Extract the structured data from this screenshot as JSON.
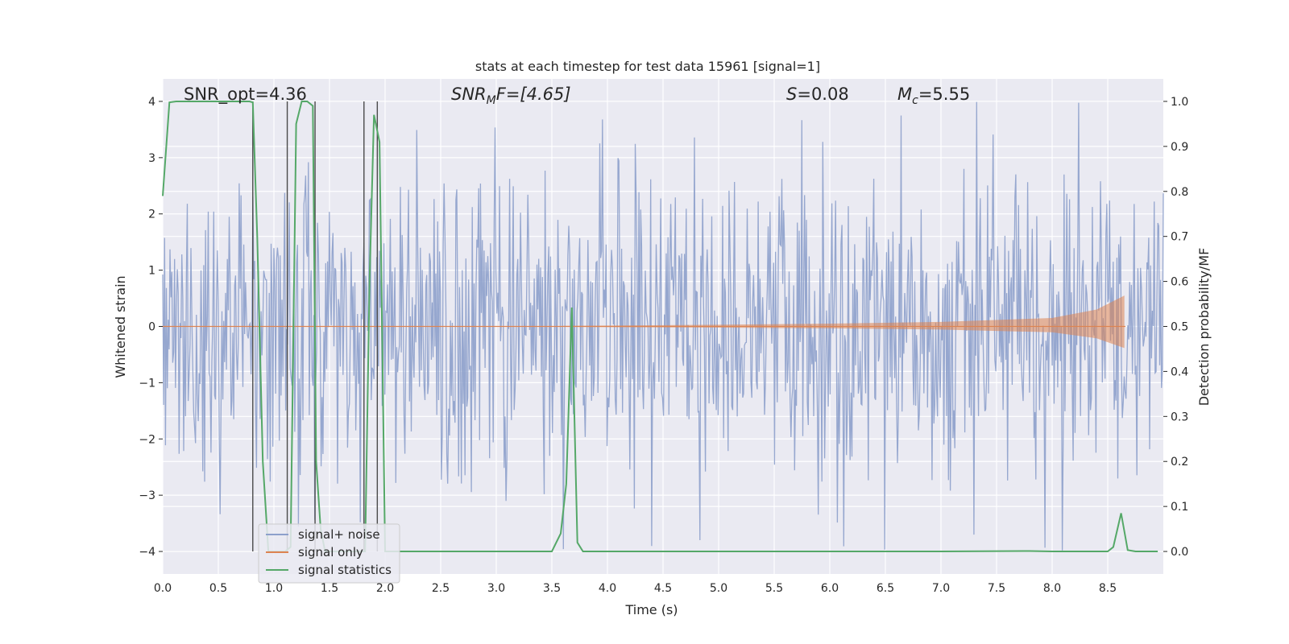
{
  "chart_data": {
    "type": "line",
    "title": "stats at each timestep for test data 15961 [signal=1]",
    "xlabel": "Time (s)",
    "ylabel": "Whitened strain",
    "y2label": "Detection probability/MF",
    "xlim": [
      0.0,
      9.0
    ],
    "ylim": [
      -4.4,
      4.4
    ],
    "y2lim": [
      -0.05,
      1.05
    ],
    "xticks": [
      "0.0",
      "0.5",
      "1.0",
      "1.5",
      "2.0",
      "2.5",
      "3.0",
      "3.5",
      "4.0",
      "4.5",
      "5.0",
      "5.5",
      "6.0",
      "6.5",
      "7.0",
      "7.5",
      "8.0",
      "8.5"
    ],
    "yticks": [
      "4",
      "3",
      "2",
      "1",
      "0",
      "−1",
      "−2",
      "−3",
      "−4"
    ],
    "y2ticks": [
      "1.0",
      "0.9",
      "0.8",
      "0.7",
      "0.6",
      "0.5",
      "0.4",
      "0.3",
      "0.2",
      "0.1",
      "0.0"
    ],
    "grid": true,
    "legend_position": "lower-left",
    "annotations": {
      "snr_opt": "SNR_opt=4.36",
      "snr_mf_main": "SNR",
      "snr_mf_sub": "M",
      "snr_mf_rest": "F=[4.65]",
      "s_main": "S",
      "s_rest": "=0.08",
      "mc_main": "M",
      "mc_sub": "c",
      "mc_rest": "=5.55"
    },
    "series": [
      {
        "name": "signal+ noise",
        "color": "#8da0cb",
        "note_band": "noise band mostly within ±1.6, frequent spikes to ±3.5, a few to about ±4.0",
        "typical_amplitude": 1.6,
        "max_spike": 4.0
      },
      {
        "name": "signal only",
        "color": "#dd8452",
        "envelope": [
          [
            3.6,
            0.01
          ],
          [
            5.0,
            0.03
          ],
          [
            6.0,
            0.05
          ],
          [
            7.0,
            0.08
          ],
          [
            8.0,
            0.15
          ],
          [
            8.4,
            0.3
          ],
          [
            8.6,
            0.5
          ],
          [
            8.65,
            0.55
          ]
        ],
        "end_time": 8.66
      },
      {
        "name": "signal statistics",
        "color": "#55a868",
        "x": [
          0.0,
          0.06,
          0.12,
          0.2,
          0.4,
          0.6,
          0.78,
          0.81,
          0.85,
          0.9,
          0.95,
          1.0,
          1.1,
          1.15,
          1.2,
          1.25,
          1.3,
          1.35,
          1.38,
          1.42,
          1.46,
          1.5,
          1.6,
          1.7,
          1.78,
          1.82,
          1.86,
          1.9,
          1.95,
          2.0,
          2.1,
          2.5,
          3.0,
          3.5,
          3.58,
          3.63,
          3.68,
          3.73,
          3.78,
          4.0,
          5.0,
          6.0,
          7.0,
          7.8,
          8.0,
          8.5,
          8.55,
          8.62,
          8.68,
          8.75,
          8.95
        ],
        "values": [
          0.79,
          0.998,
          1.0,
          1.0,
          1.0,
          1.0,
          1.0,
          0.998,
          0.7,
          0.2,
          0.0,
          0.0,
          0.0,
          0.01,
          0.95,
          1.0,
          1.0,
          0.99,
          0.2,
          0.05,
          0.0,
          0.0,
          0.0,
          0.0,
          0.0,
          0.0,
          0.6,
          0.97,
          0.91,
          0.0,
          0.0,
          0.0,
          0.0,
          0.0,
          0.04,
          0.15,
          0.542,
          0.02,
          0.0,
          0.0,
          0.0,
          0.0,
          0.0,
          0.001,
          0.0,
          0.0,
          0.01,
          0.085,
          0.003,
          0.0,
          0.0
        ]
      }
    ],
    "vertical_markers_x": [
      0.81,
      1.12,
      1.37,
      1.81,
      1.93
    ]
  },
  "legend": {
    "items": [
      "signal+ noise",
      "signal only",
      "signal statistics"
    ]
  }
}
